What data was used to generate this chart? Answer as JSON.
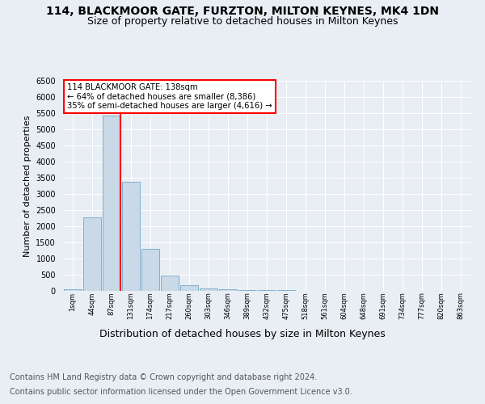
{
  "title_line1": "114, BLACKMOOR GATE, FURZTON, MILTON KEYNES, MK4 1DN",
  "title_line2": "Size of property relative to detached houses in Milton Keynes",
  "xlabel": "Distribution of detached houses by size in Milton Keynes",
  "ylabel": "Number of detached properties",
  "footer_line1": "Contains HM Land Registry data © Crown copyright and database right 2024.",
  "footer_line2": "Contains public sector information licensed under the Open Government Licence v3.0.",
  "bar_labels": [
    "1sqm",
    "44sqm",
    "87sqm",
    "131sqm",
    "174sqm",
    "217sqm",
    "260sqm",
    "303sqm",
    "346sqm",
    "389sqm",
    "432sqm",
    "475sqm",
    "518sqm",
    "561sqm",
    "604sqm",
    "648sqm",
    "691sqm",
    "734sqm",
    "777sqm",
    "820sqm",
    "863sqm"
  ],
  "bar_values": [
    60,
    2280,
    5430,
    3380,
    1290,
    480,
    165,
    80,
    55,
    35,
    20,
    15,
    10,
    5,
    3,
    2,
    1,
    1,
    0,
    0,
    0
  ],
  "bar_color": "#c9d9e8",
  "bar_edge_color": "#6fa8c9",
  "vline_bin_index": 2,
  "vline_color": "red",
  "annotation_text": "114 BLACKMOOR GATE: 138sqm\n← 64% of detached houses are smaller (8,386)\n35% of semi-detached houses are larger (4,616) →",
  "ylim": [
    0,
    6500
  ],
  "yticks": [
    0,
    500,
    1000,
    1500,
    2000,
    2500,
    3000,
    3500,
    4000,
    4500,
    5000,
    5500,
    6000,
    6500
  ],
  "background_color": "#e8eef4",
  "grid_color": "white",
  "title1_fontsize": 10,
  "title2_fontsize": 9,
  "xlabel_fontsize": 9,
  "ylabel_fontsize": 8,
  "footer_fontsize": 7
}
